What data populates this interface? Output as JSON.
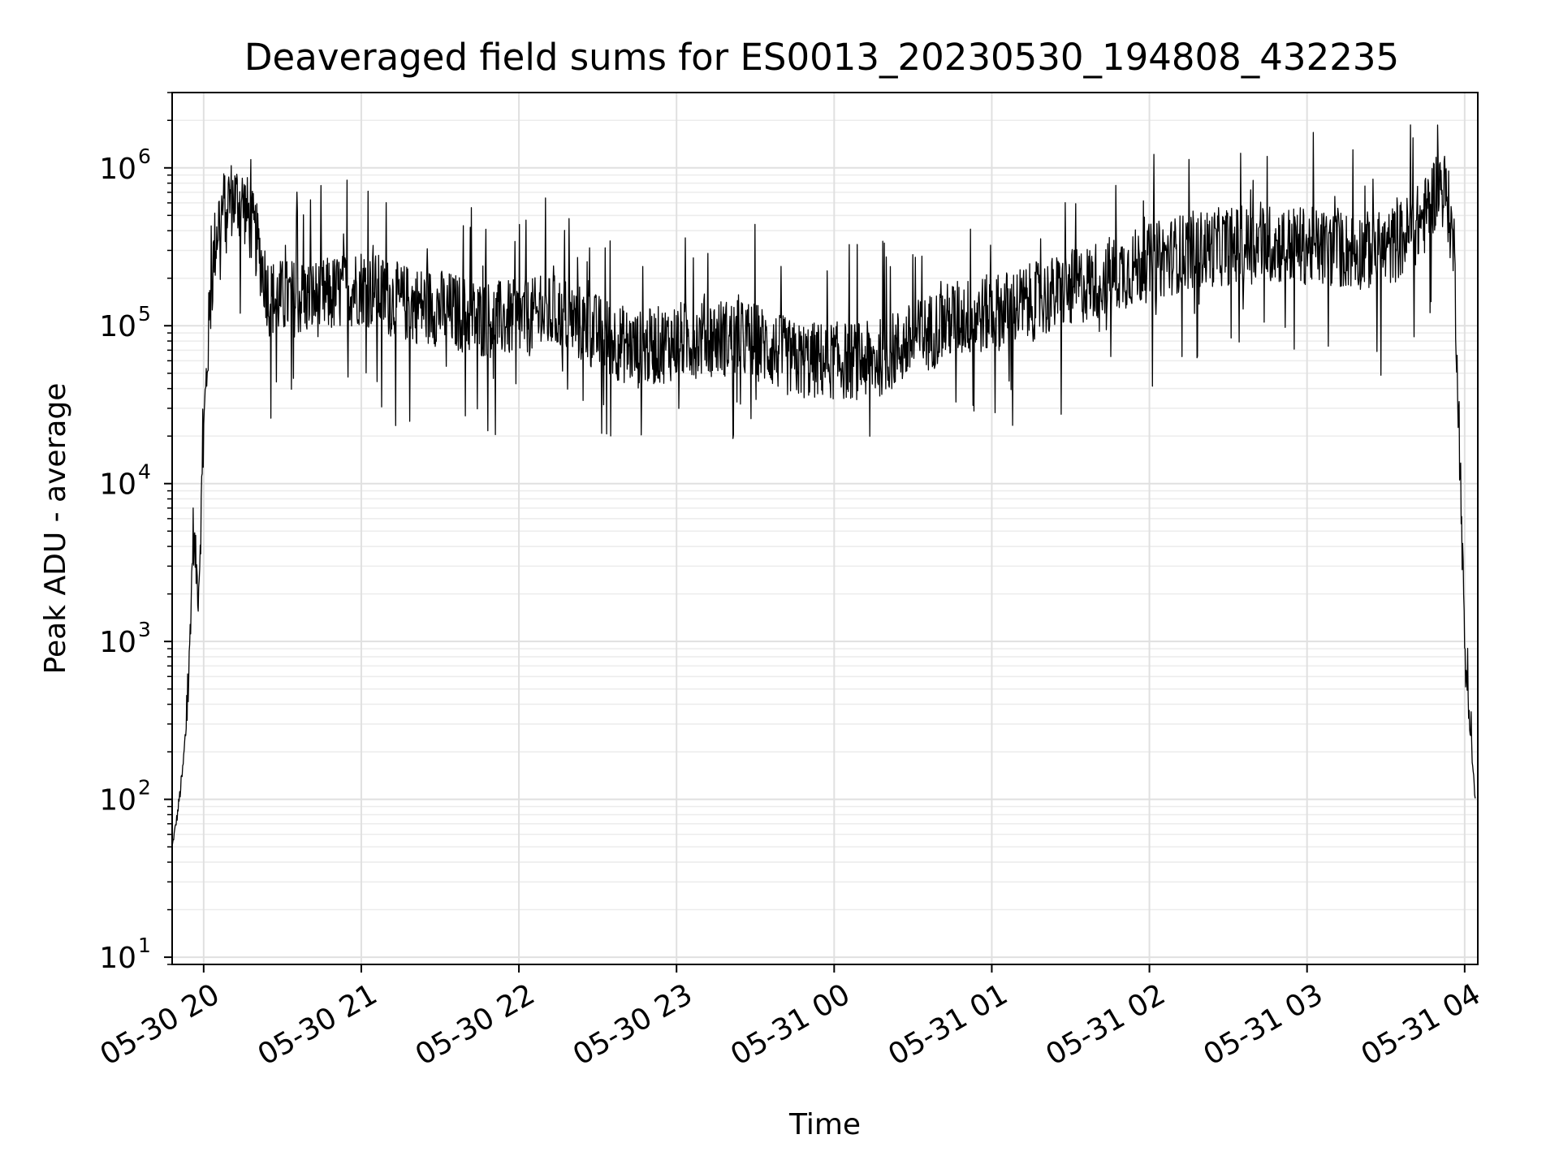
{
  "chart_data": {
    "type": "line",
    "title": "Deaveraged field sums for ES0013_20230530_194808_432235",
    "xlabel": "Time",
    "ylabel": "Peak ADU - average",
    "x_scale": "time",
    "y_scale": "log",
    "xlim": [
      "2023-05-30 19:48",
      "2023-05-31 04:05"
    ],
    "ylim": [
      9,
      3000000
    ],
    "grid": true,
    "line_color": "#000000",
    "x_ticks": [
      {
        "label": "05-30 20",
        "value": "2023-05-30 20:00"
      },
      {
        "label": "05-30 21",
        "value": "2023-05-30 21:00"
      },
      {
        "label": "05-30 22",
        "value": "2023-05-30 22:00"
      },
      {
        "label": "05-30 23",
        "value": "2023-05-30 23:00"
      },
      {
        "label": "05-31 00",
        "value": "2023-05-31 00:00"
      },
      {
        "label": "05-31 01",
        "value": "2023-05-31 01:00"
      },
      {
        "label": "05-31 02",
        "value": "2023-05-31 02:00"
      },
      {
        "label": "05-31 03",
        "value": "2023-05-31 03:00"
      },
      {
        "label": "05-31 04",
        "value": "2023-05-31 04:00"
      }
    ],
    "y_ticks": [
      {
        "base": "10",
        "exp": "1",
        "value": 10
      },
      {
        "base": "10",
        "exp": "2",
        "value": 100
      },
      {
        "base": "10",
        "exp": "3",
        "value": 1000
      },
      {
        "base": "10",
        "exp": "4",
        "value": 10000
      },
      {
        "base": "10",
        "exp": "5",
        "value": 100000
      },
      {
        "base": "10",
        "exp": "6",
        "value": 1000000
      }
    ],
    "series": [
      {
        "x": [
          "2023-05-30 19:48",
          "2023-05-30 19:50",
          "2023-05-30 19:52",
          "2023-05-30 19:54",
          "2023-05-30 19:56",
          "2023-05-30 19:58",
          "2023-05-30 20:00",
          "2023-05-30 20:02",
          "2023-05-30 20:04",
          "2023-05-30 20:06",
          "2023-05-30 20:10",
          "2023-05-30 20:15",
          "2023-05-30 20:20",
          "2023-05-30 20:25",
          "2023-05-30 20:30",
          "2023-05-30 20:45",
          "2023-05-30 21:00",
          "2023-05-30 21:15",
          "2023-05-30 21:30",
          "2023-05-30 21:45",
          "2023-05-30 22:00",
          "2023-05-30 22:15",
          "2023-05-30 22:30",
          "2023-05-30 22:45",
          "2023-05-30 23:00",
          "2023-05-30 23:15",
          "2023-05-30 23:30",
          "2023-05-30 23:45",
          "2023-05-31 00:00",
          "2023-05-31 00:15",
          "2023-05-31 00:30",
          "2023-05-31 00:45",
          "2023-05-31 01:00",
          "2023-05-31 01:15",
          "2023-05-31 01:30",
          "2023-05-31 01:45",
          "2023-05-31 02:00",
          "2023-05-31 02:15",
          "2023-05-31 02:30",
          "2023-05-31 02:45",
          "2023-05-31 03:00",
          "2023-05-31 03:15",
          "2023-05-31 03:30",
          "2023-05-31 03:40",
          "2023-05-31 03:45",
          "2023-05-31 03:50",
          "2023-05-31 03:53",
          "2023-05-31 03:56",
          "2023-05-31 03:58",
          "2023-05-31 04:00",
          "2023-05-31 04:02",
          "2023-05-31 04:04"
        ],
        "y": [
          50,
          80,
          150,
          400,
          5000,
          2000,
          20000,
          100000,
          300000,
          500000,
          650000,
          600000,
          350000,
          150000,
          150000,
          150000,
          180000,
          140000,
          130000,
          110000,
          110000,
          120000,
          90000,
          70000,
          80000,
          85000,
          80000,
          60000,
          60000,
          60000,
          80000,
          110000,
          120000,
          140000,
          170000,
          210000,
          250000,
          300000,
          320000,
          330000,
          320000,
          300000,
          300000,
          400000,
          500000,
          800000,
          700000,
          300000,
          20000,
          1000,
          300,
          100
        ]
      }
    ]
  }
}
